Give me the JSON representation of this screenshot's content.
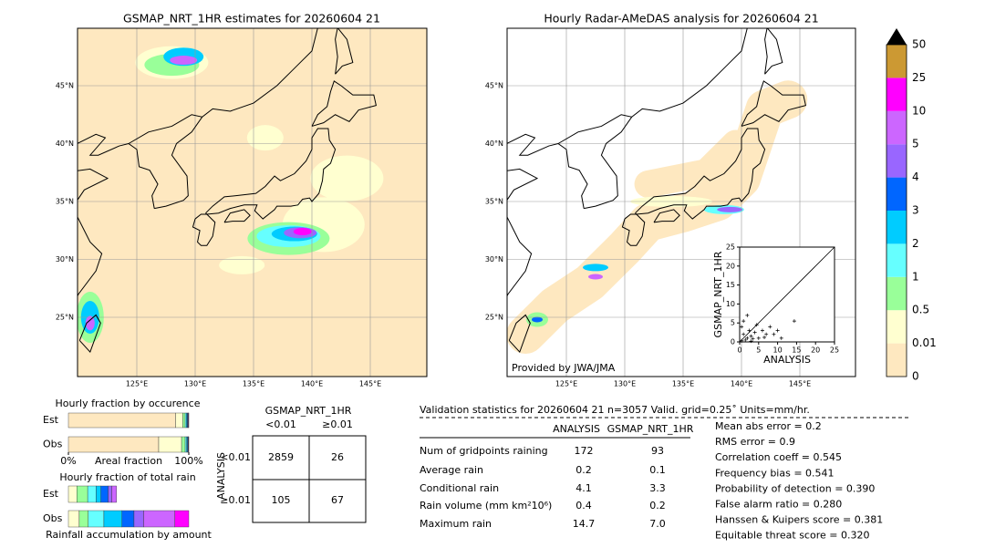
{
  "left_map": {
    "title": "GSMAP_NRT_1HR estimates for 20260604 21",
    "lat_labels": [
      "45°N",
      "40°N",
      "35°N",
      "30°N",
      "25°N"
    ],
    "lon_labels": [
      "125°E",
      "130°E",
      "135°E",
      "140°E",
      "145°E"
    ]
  },
  "right_map": {
    "title": "Hourly Radar-AMeDAS analysis for 20260604 21",
    "lat_labels": [
      "45°N",
      "40°N",
      "35°N",
      "30°N",
      "25°N"
    ],
    "lon_labels": [
      "125°E",
      "130°E",
      "135°E",
      "140°E",
      "145°E"
    ],
    "credit": "Provided by JWA/JMA"
  },
  "colorbar": {
    "labels": [
      "0",
      "0.01",
      "0.5",
      "1",
      "2",
      "3",
      "4",
      "5",
      "10",
      "25",
      "50"
    ],
    "colors": [
      "#fee8c0",
      "#ffffd0",
      "#99ff99",
      "#66ffff",
      "#00ccff",
      "#0066ff",
      "#9966ff",
      "#cc66ff",
      "#ff00ff",
      "#cc9933"
    ],
    "extend_color": "#000000"
  },
  "chart_data": [
    {
      "type": "scatter",
      "xlabel": "ANALYSIS",
      "ylabel": "GSMAP_NRT_1HR",
      "xlim": [
        0,
        25
      ],
      "ylim": [
        0,
        25
      ],
      "xticks": [
        0,
        5,
        10,
        15,
        20,
        25
      ],
      "yticks": [
        0,
        5,
        10,
        15,
        20,
        25
      ],
      "x": [
        0.5,
        1,
        1.5,
        2,
        2.5,
        3,
        3.5,
        4,
        5,
        6,
        7,
        8,
        9,
        10,
        11,
        14.4,
        1,
        2,
        0.5,
        4.5,
        3,
        6.5
      ],
      "y": [
        0.3,
        2,
        0.5,
        1,
        3,
        1.5,
        0.8,
        2.5,
        1,
        3,
        2,
        4,
        2,
        3,
        1,
        5.5,
        5.5,
        7,
        4,
        4.5,
        0.2,
        1.2
      ]
    },
    {
      "type": "stacked_bar",
      "title": "Hourly fraction by occurence",
      "xlabel": "Areal fraction",
      "categories": [
        "Est",
        "Obs"
      ],
      "xlim": [
        0,
        1
      ],
      "xticks": [
        {
          "value": 0,
          "label": "0%"
        },
        {
          "value": 1,
          "label": "100%"
        }
      ],
      "series": [
        {
          "color": "#fee8c0",
          "values": [
            0.89,
            0.75
          ]
        },
        {
          "color": "#ffffd0",
          "values": [
            0.06,
            0.19
          ]
        },
        {
          "color": "#99ff99",
          "values": [
            0.02,
            0.03
          ]
        },
        {
          "color": "#66ffff",
          "values": [
            0.01,
            0.012
          ]
        },
        {
          "color": "#00ccff",
          "values": [
            0.008,
            0.007
          ]
        },
        {
          "color": "#0066ff",
          "values": [
            0.005,
            0.005
          ]
        },
        {
          "color": "#9966ff",
          "values": [
            0.004,
            0.003
          ]
        },
        {
          "color": "#cc66ff",
          "values": [
            0.002,
            0.002
          ]
        },
        {
          "color": "#ff00ff",
          "values": [
            0.001,
            0.001
          ]
        }
      ]
    },
    {
      "type": "stacked_bar",
      "title": "Hourly fraction of total rain",
      "xlabel": "Rainfall accumulation by amount",
      "categories": [
        "Est",
        "Obs"
      ],
      "xlim": [
        0,
        1
      ],
      "series": [
        {
          "color": "#ffffd0",
          "values": [
            0.07,
            0.09
          ]
        },
        {
          "color": "#99ff99",
          "values": [
            0.09,
            0.075
          ]
        },
        {
          "color": "#66ffff",
          "values": [
            0.07,
            0.13
          ]
        },
        {
          "color": "#00ccff",
          "values": [
            0.04,
            0.15
          ]
        },
        {
          "color": "#0066ff",
          "values": [
            0.06,
            0.1
          ]
        },
        {
          "color": "#9966ff",
          "values": [
            0.03,
            0.08
          ]
        },
        {
          "color": "#cc66ff",
          "values": [
            0.04,
            0.26
          ]
        },
        {
          "color": "#ff00ff",
          "values": [
            0,
            0.115
          ]
        }
      ]
    }
  ],
  "contingency": {
    "header": "GSMAP_NRT_1HR",
    "cols": [
      "<0.01",
      "≥0.01"
    ],
    "row_title": "ANALYSIS",
    "rows": [
      "<0.01",
      "≥0.01"
    ],
    "cells": [
      [
        "2859",
        "26"
      ],
      [
        "105",
        "67"
      ]
    ]
  },
  "stats": {
    "title": "Validation statistics for 20260604 21  n=3057 Valid. grid=0.25˚ Units=mm/hr.",
    "columns": [
      "ANALYSIS",
      "GSMAP_NRT_1HR"
    ],
    "rows": [
      {
        "label": "Num of gridpoints raining",
        "values": [
          "172",
          "93"
        ]
      },
      {
        "label": "Average rain",
        "values": [
          "0.2",
          "0.1"
        ]
      },
      {
        "label": "Conditional rain",
        "values": [
          "4.1",
          "3.3"
        ]
      },
      {
        "label": "Rain volume (mm km²10⁶)",
        "values": [
          "0.4",
          "0.2"
        ]
      },
      {
        "label": "Maximum rain",
        "values": [
          "14.7",
          "7.0"
        ]
      }
    ]
  },
  "scores": [
    "Mean abs error =    0.2",
    "RMS error =    0.9",
    "Correlation coeff =  0.545",
    "Frequency bias =  0.541",
    "Probability of detection =  0.390",
    "False alarm ratio =  0.280",
    "Hanssen & Kuipers score =  0.381",
    "Equitable threat score =  0.320"
  ]
}
